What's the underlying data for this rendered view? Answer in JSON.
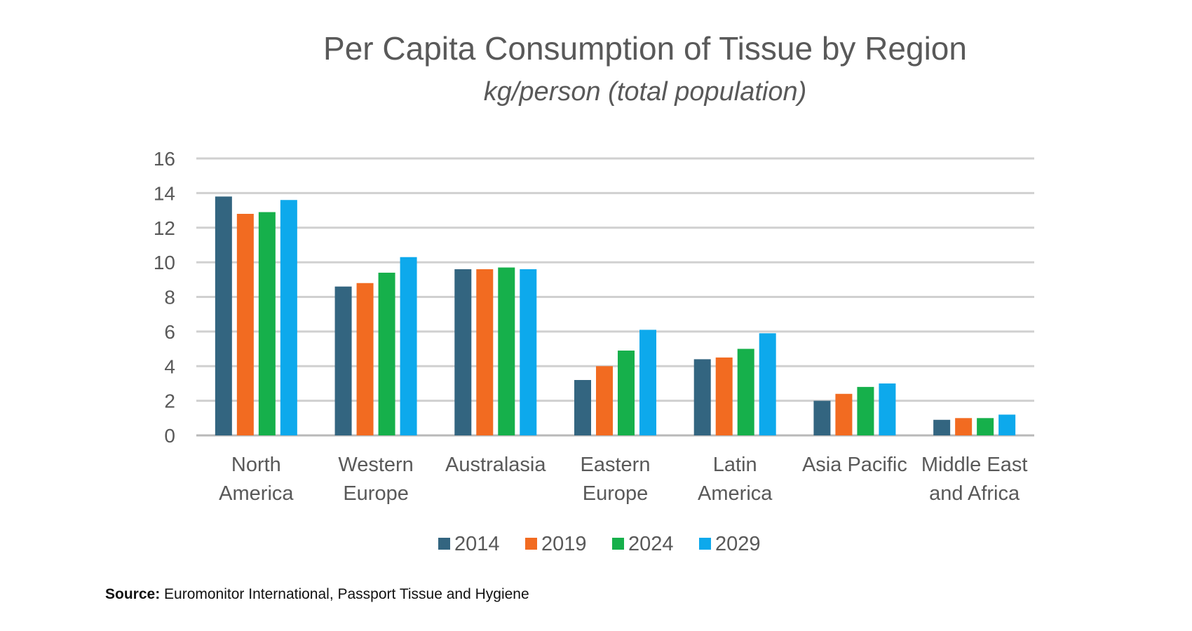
{
  "chart_data": {
    "type": "bar",
    "title": "Per Capita Consumption of Tissue by Region",
    "subtitle": "kg/person (total population)",
    "categories": [
      [
        "North",
        "America"
      ],
      [
        "Western",
        "Europe"
      ],
      [
        "Australasia"
      ],
      [
        "Eastern",
        "Europe"
      ],
      [
        "Latin",
        "America"
      ],
      [
        "Asia Pacific"
      ],
      [
        "Middle East",
        "and Africa"
      ]
    ],
    "series": [
      {
        "name": "2014",
        "color": "#336580",
        "values": [
          13.8,
          8.6,
          9.6,
          3.2,
          4.4,
          2.0,
          0.9
        ]
      },
      {
        "name": "2019",
        "color": "#F26B21",
        "values": [
          12.8,
          8.8,
          9.6,
          4.0,
          4.5,
          2.4,
          1.0
        ]
      },
      {
        "name": "2024",
        "color": "#16B04B",
        "values": [
          12.9,
          9.4,
          9.7,
          4.9,
          5.0,
          2.8,
          1.0
        ]
      },
      {
        "name": "2029",
        "color": "#0DA9EC",
        "values": [
          13.6,
          10.3,
          9.6,
          6.1,
          5.9,
          3.0,
          1.2
        ]
      }
    ],
    "ylim": [
      0,
      16
    ],
    "yticks": [
      0,
      2,
      4,
      6,
      8,
      10,
      12,
      14,
      16
    ],
    "grid": true,
    "legend": "bottom"
  },
  "source": {
    "label": "Source:",
    "text": "Euromonitor International, Passport Tissue and Hygiene"
  }
}
